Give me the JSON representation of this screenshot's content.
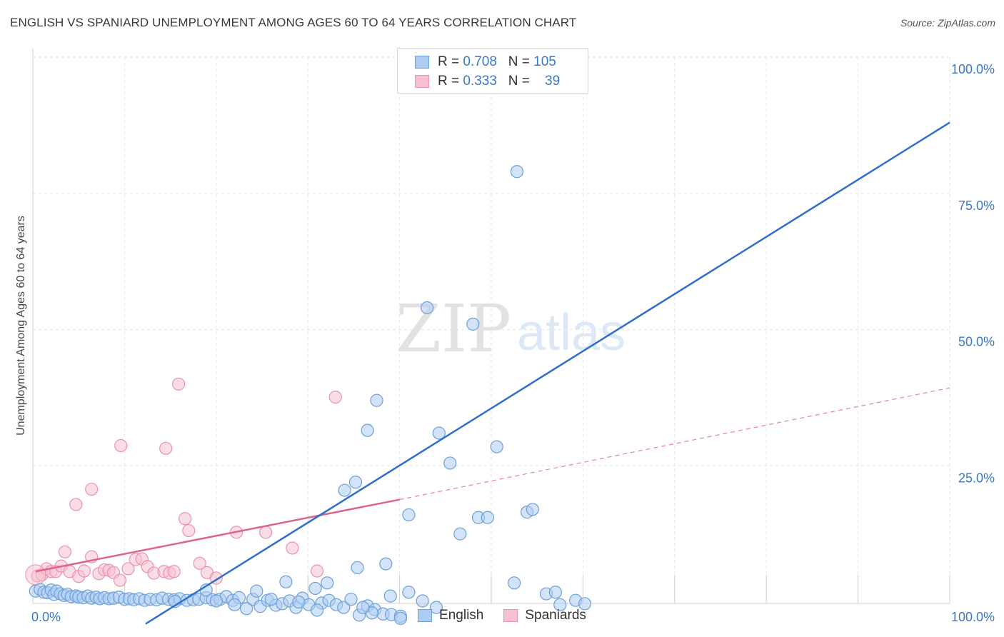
{
  "title": "ENGLISH VS SPANIARD UNEMPLOYMENT AMONG AGES 60 TO 64 YEARS CORRELATION CHART",
  "source": "Source: ZipAtlas.com",
  "watermark": {
    "zip": "ZIP",
    "atlas": "atlas"
  },
  "legend_top": [
    {
      "r_label": "R =",
      "r_value": "0.708",
      "n_label": "N =",
      "n_value": "105"
    },
    {
      "r_label": "R =",
      "r_value": "0.333",
      "n_label": "N =",
      "n_value": "39"
    }
  ],
  "legend_bottom": {
    "english": "English",
    "spaniards": "Spaniards"
  },
  "colors": {
    "english_fill": "#aecdf2",
    "english_stroke": "#6d9fd9",
    "english_line": "#2e6fcc",
    "spaniard_fill": "#f7c1d0",
    "spaniard_stroke": "#ec92ad",
    "spaniard_line": "#e0628e",
    "axis_text": "#3a78c8",
    "grid": "#e3e3e3"
  },
  "chart_data": {
    "type": "scatter",
    "title": "ENGLISH VS SPANIARD UNEMPLOYMENT AMONG AGES 60 TO 64 YEARS CORRELATION CHART",
    "xlabel": "",
    "ylabel": "Unemployment Among Ages 60 to 64 years",
    "xlim": [
      0,
      100
    ],
    "ylim": [
      0,
      100
    ],
    "x_tick_labels": [
      "0.0%",
      "100.0%"
    ],
    "y_tick_labels": [
      "25.0%",
      "50.0%",
      "75.0%",
      "100.0%"
    ],
    "y_ticks": [
      25,
      50,
      75,
      100
    ],
    "grid": true,
    "legend": "top-center",
    "series": [
      {
        "name": "English",
        "R": 0.708,
        "N": 105,
        "trend": {
          "x": [
            12.3,
            100
          ],
          "y": [
            -4.0,
            88.0
          ],
          "style": "solid"
        },
        "points": [
          [
            0.3,
            2.0
          ],
          [
            0.8,
            2.3
          ],
          [
            1.2,
            1.8
          ],
          [
            1.6,
            1.7
          ],
          [
            2.0,
            2.2
          ],
          [
            2.3,
            1.4
          ],
          [
            2.6,
            2.0
          ],
          [
            3.0,
            1.5
          ],
          [
            3.4,
            1.2
          ],
          [
            3.8,
            1.4
          ],
          [
            4.2,
            1.0
          ],
          [
            4.7,
            1.1
          ],
          [
            5.0,
            0.9
          ],
          [
            5.5,
            0.8
          ],
          [
            6.0,
            1.1
          ],
          [
            6.4,
            0.7
          ],
          [
            6.9,
            0.9
          ],
          [
            7.3,
            0.6
          ],
          [
            7.8,
            0.8
          ],
          [
            8.3,
            0.6
          ],
          [
            8.8,
            0.7
          ],
          [
            9.4,
            0.9
          ],
          [
            10.0,
            0.5
          ],
          [
            10.5,
            0.6
          ],
          [
            11.0,
            0.4
          ],
          [
            11.6,
            0.6
          ],
          [
            12.2,
            0.3
          ],
          [
            12.8,
            0.5
          ],
          [
            13.5,
            0.4
          ],
          [
            14.1,
            0.7
          ],
          [
            14.8,
            0.5
          ],
          [
            15.4,
            0.4
          ],
          [
            16.0,
            0.6
          ],
          [
            16.8,
            0.3
          ],
          [
            17.5,
            0.4
          ],
          [
            18.1,
            0.5
          ],
          [
            18.9,
            0.8
          ],
          [
            19.6,
            0.4
          ],
          [
            20.4,
            0.5
          ],
          [
            21.1,
            1.0
          ],
          [
            21.8,
            0.3
          ],
          [
            22.5,
            0.8
          ],
          [
            23.3,
            -1.2
          ],
          [
            24.0,
            0.5
          ],
          [
            24.8,
            -0.8
          ],
          [
            25.6,
            0.3
          ],
          [
            26.5,
            -0.6
          ],
          [
            27.2,
            -0.3
          ],
          [
            28.0,
            0.2
          ],
          [
            28.7,
            -1.0
          ],
          [
            29.4,
            0.7
          ],
          [
            30.1,
            -0.5
          ],
          [
            30.8,
            2.5
          ],
          [
            31.5,
            -0.2
          ],
          [
            32.3,
            0.3
          ],
          [
            33.1,
            -0.5
          ],
          [
            33.9,
            -1.0
          ],
          [
            34.7,
            0.5
          ],
          [
            35.6,
            -2.4
          ],
          [
            36.5,
            -0.7
          ],
          [
            37.3,
            -1.4
          ],
          [
            38.2,
            -2.2
          ],
          [
            39.1,
            -2.3
          ],
          [
            40.1,
            -2.6
          ],
          [
            39.0,
            1.1
          ],
          [
            38.5,
            7.0
          ],
          [
            35.4,
            6.3
          ],
          [
            32.1,
            3.5
          ],
          [
            27.6,
            3.7
          ],
          [
            24.4,
            2.0
          ],
          [
            18.9,
            2.2
          ],
          [
            37.0,
            -2.0
          ],
          [
            40.1,
            -3.0
          ],
          [
            36.0,
            -1.0
          ],
          [
            31.0,
            -1.5
          ],
          [
            29.0,
            0.0
          ],
          [
            26.0,
            0.5
          ],
          [
            22.0,
            -0.5
          ],
          [
            20.0,
            0.2
          ],
          [
            15.5,
            0.1
          ],
          [
            34.0,
            20.5
          ],
          [
            35.2,
            22.0
          ],
          [
            36.5,
            31.5
          ],
          [
            37.5,
            37.0
          ],
          [
            41.0,
            16.0
          ],
          [
            43.0,
            54.0
          ],
          [
            44.3,
            31.0
          ],
          [
            45.5,
            25.5
          ],
          [
            46.6,
            12.5
          ],
          [
            48.6,
            15.5
          ],
          [
            49.6,
            15.5
          ],
          [
            50.6,
            28.5
          ],
          [
            48.0,
            51.0
          ],
          [
            53.9,
            16.5
          ],
          [
            54.5,
            17.0
          ],
          [
            52.8,
            79.0
          ],
          [
            56.0,
            1.5
          ],
          [
            57.0,
            1.8
          ],
          [
            57.5,
            -0.5
          ],
          [
            59.2,
            0.3
          ],
          [
            60.2,
            -0.3
          ],
          [
            52.5,
            3.5
          ],
          [
            41.0,
            1.8
          ],
          [
            42.5,
            0.2
          ],
          [
            44.0,
            -1.0
          ]
        ]
      },
      {
        "name": "Spaniards",
        "R": 0.333,
        "N": 39,
        "trend": {
          "x": [
            0.3,
            40.0
          ],
          "y": [
            5.6,
            18.8
          ],
          "style": "solid"
        },
        "trend_extended": {
          "x": [
            40.0,
            100
          ],
          "y": [
            18.8,
            39.3
          ],
          "style": "dashed"
        },
        "points": [
          [
            0.5,
            4.8
          ],
          [
            1.0,
            5.0
          ],
          [
            1.5,
            6.1
          ],
          [
            2.0,
            5.6
          ],
          [
            2.5,
            5.6
          ],
          [
            3.1,
            6.6
          ],
          [
            3.5,
            9.2
          ],
          [
            4.0,
            5.6
          ],
          [
            5.0,
            4.7
          ],
          [
            5.6,
            5.7
          ],
          [
            6.4,
            8.3
          ],
          [
            7.2,
            5.2
          ],
          [
            7.8,
            5.9
          ],
          [
            8.3,
            5.8
          ],
          [
            8.8,
            5.4
          ],
          [
            9.5,
            4.0
          ],
          [
            10.4,
            6.1
          ],
          [
            11.2,
            7.8
          ],
          [
            11.9,
            7.9
          ],
          [
            12.5,
            6.5
          ],
          [
            13.2,
            5.3
          ],
          [
            14.3,
            5.6
          ],
          [
            14.9,
            5.3
          ],
          [
            15.4,
            5.6
          ],
          [
            15.9,
            40.0
          ],
          [
            16.6,
            15.3
          ],
          [
            17.0,
            13.1
          ],
          [
            18.2,
            7.1
          ],
          [
            19.0,
            5.4
          ],
          [
            20.0,
            4.4
          ],
          [
            22.2,
            12.8
          ],
          [
            25.4,
            12.8
          ],
          [
            28.3,
            9.9
          ],
          [
            31.0,
            5.7
          ],
          [
            33.0,
            37.6
          ],
          [
            6.4,
            20.7
          ],
          [
            4.7,
            17.9
          ],
          [
            9.6,
            28.7
          ],
          [
            14.5,
            28.2
          ]
        ]
      }
    ]
  }
}
